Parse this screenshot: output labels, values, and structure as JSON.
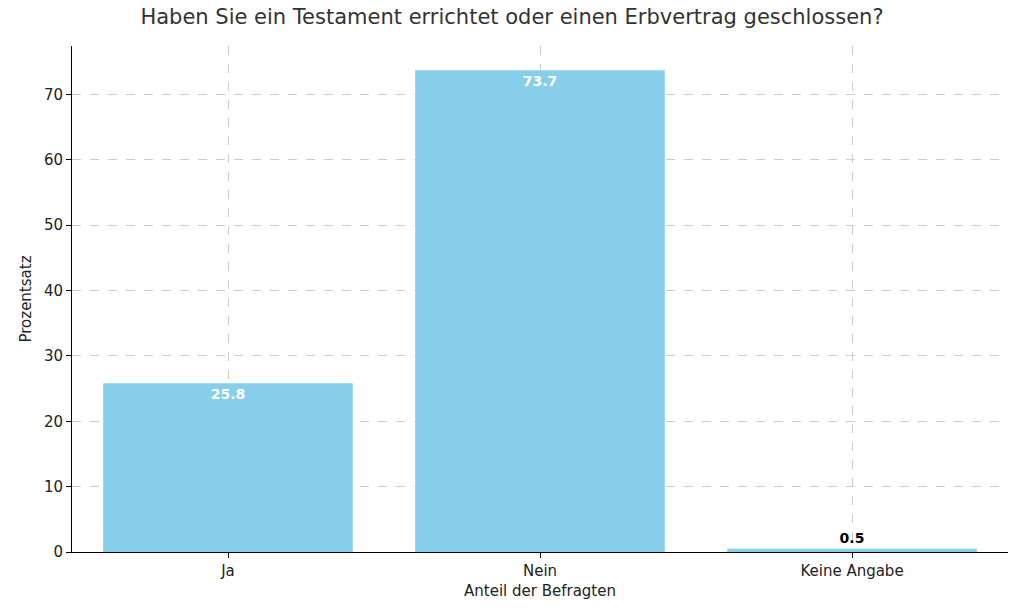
{
  "chart_data": {
    "type": "bar",
    "title": "Haben Sie ein Testament errichtet oder einen Erbvertrag geschlossen?",
    "x_label": "Anteil der Befragten",
    "y_label": "Prozentsatz",
    "categories": [
      "Ja",
      "Nein",
      "Keine Angabe"
    ],
    "values": [
      25.8,
      73.7,
      0.5
    ],
    "color": "#87ceeb",
    "ylim": [
      0,
      77.4
    ],
    "yticks": [
      0,
      10,
      20,
      30,
      40,
      50,
      60,
      70
    ],
    "grid": true,
    "data_labels": true
  }
}
